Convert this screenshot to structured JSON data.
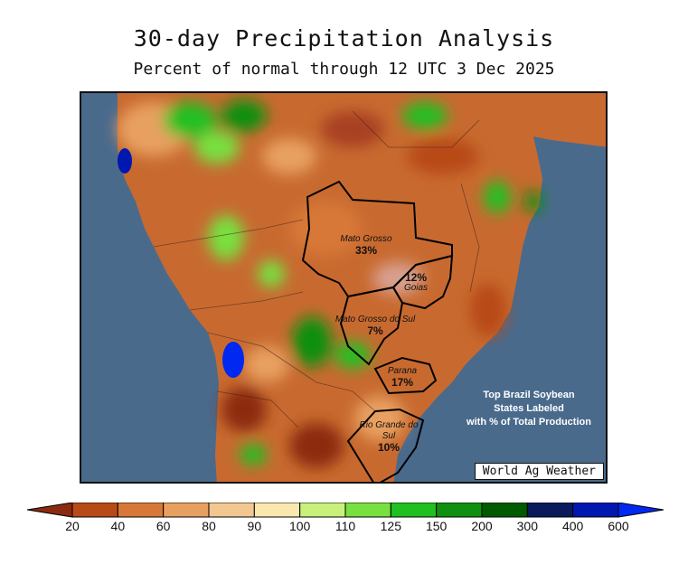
{
  "header": {
    "title": "30-day Precipitation Analysis",
    "subtitle": "Percent of normal through 12 UTC 3 Dec 2025"
  },
  "map": {
    "states": [
      {
        "id": "mato-grosso",
        "name": "Mato Grosso",
        "percent": "33%"
      },
      {
        "id": "goias",
        "name": "Goias",
        "percent": "12%"
      },
      {
        "id": "mato-grosso-do-sul",
        "name": "Mato Grosso do Sul",
        "percent": "7%"
      },
      {
        "id": "parana",
        "name": "Parana",
        "percent": "17%"
      },
      {
        "id": "rio-grande-do-sul",
        "name": "Rio Grande do Sul",
        "percent": "10%"
      }
    ],
    "note_lines": [
      "Top Brazil Soybean",
      "States Labeled",
      "with % of Total Production"
    ],
    "credit": "World Ag Weather",
    "ocean_color": "#4a6a8c"
  },
  "legend": {
    "ticks": [
      "20",
      "40",
      "60",
      "80",
      "90",
      "100",
      "110",
      "125",
      "150",
      "200",
      "300",
      "400",
      "600"
    ],
    "colors": [
      "#8b2a10",
      "#b84a18",
      "#d87838",
      "#e8a060",
      "#f2c890",
      "#fae8b0",
      "#c8f07a",
      "#78e040",
      "#20c020",
      "#109010",
      "#005a00",
      "#0a1a5a",
      "#0018b0",
      "#0028f0"
    ]
  }
}
